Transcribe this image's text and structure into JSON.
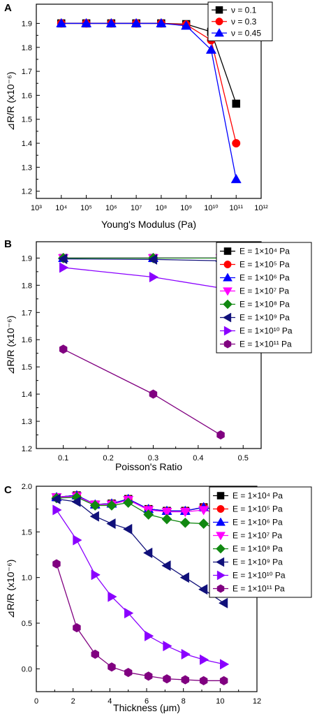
{
  "colors": {
    "black": "#000000",
    "red": "#ff0000",
    "blue": "#0000ff",
    "magenta": "#ff00ff",
    "green": "#118811",
    "navy": "#10107a",
    "violet": "#8a00ff",
    "purple": "#800080"
  },
  "chart_data": [
    {
      "panel_label": "A",
      "type": "line",
      "xlabel": "Young's Modulus (Pa)",
      "ylabel": "⊿R/R (x10⁻⁶)",
      "x_scale": "log",
      "xlim": [
        1000,
        1000000000000
      ],
      "x_ticks": [
        1000,
        10000,
        100000,
        1000000,
        10000000,
        100000000,
        1000000000,
        10000000000,
        100000000000,
        1000000000000
      ],
      "x_tick_labels": [
        "10³",
        "10⁴",
        "10⁵",
        "10⁶",
        "10⁷",
        "10⁸",
        "10⁹",
        "10¹⁰",
        "10¹¹",
        "10¹²"
      ],
      "ylim": [
        1.17,
        1.98
      ],
      "y_ticks": [
        1.2,
        1.3,
        1.4,
        1.5,
        1.6,
        1.7,
        1.8,
        1.9
      ],
      "y_tick_labels": [
        "1.2",
        "1.3",
        "1.4",
        "1.5",
        "1.6",
        "1.7",
        "1.8",
        "1.9"
      ],
      "legend_position": "top-right",
      "x": [
        10000,
        100000,
        1000000,
        10000000,
        100000000,
        1000000000,
        10000000000,
        100000000000
      ],
      "series": [
        {
          "name": "ν = 0.1",
          "color": "black",
          "marker": "square",
          "values": [
            1.9,
            1.9,
            1.9,
            1.9,
            1.9,
            1.897,
            1.865,
            1.565
          ]
        },
        {
          "name": "ν = 0.3",
          "color": "red",
          "marker": "circle",
          "values": [
            1.9,
            1.9,
            1.9,
            1.9,
            1.9,
            1.895,
            1.83,
            1.4
          ]
        },
        {
          "name": "ν = 0.45",
          "color": "blue",
          "marker": "triangle-up",
          "values": [
            1.9,
            1.9,
            1.9,
            1.9,
            1.9,
            1.89,
            1.79,
            1.25
          ]
        }
      ]
    },
    {
      "panel_label": "B",
      "type": "line",
      "xlabel": "Poisson's Ratio",
      "ylabel": "⊿R/R (x10⁻⁶)",
      "x_scale": "linear",
      "xlim": [
        0.04,
        0.54
      ],
      "x_ticks": [
        0.1,
        0.2,
        0.3,
        0.4,
        0.5
      ],
      "x_tick_labels": [
        "0.1",
        "0.2",
        "0.3",
        "0.4",
        "0.5"
      ],
      "ylim": [
        1.2,
        1.96
      ],
      "y_ticks": [
        1.2,
        1.3,
        1.4,
        1.5,
        1.6,
        1.7,
        1.8,
        1.9
      ],
      "y_tick_labels": [
        "1.2",
        "1.3",
        "1.4",
        "1.5",
        "1.6",
        "1.7",
        "1.8",
        "1.9"
      ],
      "legend_position": "top-right",
      "x": [
        0.1,
        0.3,
        0.45
      ],
      "series": [
        {
          "name": "E = 1×10⁴ Pa",
          "color": "black",
          "marker": "square",
          "values": [
            1.9,
            1.9,
            1.9
          ]
        },
        {
          "name": "E = 1×10⁵ Pa",
          "color": "red",
          "marker": "circle",
          "values": [
            1.9,
            1.9,
            1.9
          ]
        },
        {
          "name": "E = 1×10⁶ Pa",
          "color": "blue",
          "marker": "triangle-up",
          "values": [
            1.9,
            1.9,
            1.9
          ]
        },
        {
          "name": "E = 1×10⁷ Pa",
          "color": "magenta",
          "marker": "triangle-down",
          "values": [
            1.9,
            1.9,
            1.9
          ]
        },
        {
          "name": "E = 1×10⁸ Pa",
          "color": "green",
          "marker": "diamond",
          "values": [
            1.9,
            1.9,
            1.9
          ]
        },
        {
          "name": "E = 1×10⁹ Pa",
          "color": "navy",
          "marker": "triangle-left",
          "values": [
            1.897,
            1.895,
            1.89
          ]
        },
        {
          "name": "E = 1×10¹⁰ Pa",
          "color": "violet",
          "marker": "triangle-right",
          "values": [
            1.865,
            1.83,
            1.79
          ]
        },
        {
          "name": "E = 1×10¹¹ Pa",
          "color": "purple",
          "marker": "hexagon",
          "values": [
            1.565,
            1.4,
            1.25
          ]
        }
      ]
    },
    {
      "panel_label": "C",
      "type": "line",
      "xlabel": "Thickness (μm)",
      "ylabel": "⊿R/R (x10⁻⁶)",
      "x_scale": "linear",
      "xlim": [
        0,
        12
      ],
      "x_ticks": [
        0,
        2,
        4,
        6,
        8,
        10,
        12
      ],
      "x_tick_labels": [
        "0",
        "2",
        "4",
        "6",
        "8",
        "10",
        "12"
      ],
      "ylim": [
        -0.25,
        2.0
      ],
      "y_ticks": [
        0.0,
        0.5,
        1.0,
        1.5,
        2.0
      ],
      "y_tick_labels": [
        "0.0",
        "0.5",
        "1.0",
        "1.5",
        "2.0"
      ],
      "legend_position": "top-right",
      "x": [
        1.1,
        2.2,
        3.2,
        4.1,
        5.0,
        6.1,
        7.1,
        8.1,
        9.1,
        10.2
      ],
      "series": [
        {
          "name": "E = 1×10⁴ Pa",
          "color": "black",
          "marker": "square",
          "values": [
            1.88,
            1.9,
            1.8,
            1.81,
            1.86,
            1.75,
            1.73,
            1.73,
            1.77,
            1.73
          ]
        },
        {
          "name": "E = 1×10⁵ Pa",
          "color": "red",
          "marker": "circle",
          "values": [
            1.88,
            1.9,
            1.8,
            1.81,
            1.86,
            1.75,
            1.73,
            1.73,
            1.77,
            1.72
          ]
        },
        {
          "name": "E = 1×10⁶ Pa",
          "color": "blue",
          "marker": "triangle-up",
          "values": [
            1.88,
            1.9,
            1.8,
            1.81,
            1.86,
            1.75,
            1.73,
            1.73,
            1.77,
            1.72
          ]
        },
        {
          "name": "E = 1×10⁷ Pa",
          "color": "magenta",
          "marker": "triangle-down",
          "values": [
            1.88,
            1.89,
            1.8,
            1.8,
            1.85,
            1.74,
            1.72,
            1.72,
            1.74,
            1.69
          ]
        },
        {
          "name": "E = 1×10⁸ Pa",
          "color": "green",
          "marker": "diamond",
          "values": [
            1.87,
            1.88,
            1.79,
            1.79,
            1.82,
            1.69,
            1.64,
            1.6,
            1.59,
            1.5
          ]
        },
        {
          "name": "E = 1×10⁹ Pa",
          "color": "navy",
          "marker": "triangle-left",
          "values": [
            1.86,
            1.83,
            1.67,
            1.59,
            1.53,
            1.27,
            1.13,
            1.0,
            0.87,
            0.72
          ]
        },
        {
          "name": "E = 1×10¹⁰ Pa",
          "color": "violet",
          "marker": "triangle-right",
          "values": [
            1.74,
            1.41,
            1.03,
            0.79,
            0.61,
            0.36,
            0.25,
            0.16,
            0.1,
            0.05
          ]
        },
        {
          "name": "E = 1×10¹¹ Pa",
          "color": "purple",
          "marker": "hexagon",
          "values": [
            1.15,
            0.45,
            0.16,
            0.02,
            -0.04,
            -0.08,
            -0.11,
            -0.12,
            -0.13,
            -0.13
          ]
        }
      ]
    }
  ]
}
